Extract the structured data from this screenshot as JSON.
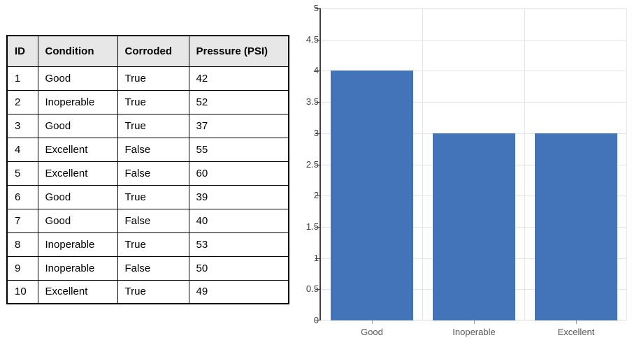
{
  "table": {
    "headers": [
      "ID",
      "Condition",
      "Corroded",
      "Pressure (PSI)"
    ],
    "rows": [
      [
        "1",
        "Good",
        "True",
        "42"
      ],
      [
        "2",
        "Inoperable",
        "True",
        "52"
      ],
      [
        "3",
        "Good",
        "True",
        "37"
      ],
      [
        "4",
        "Excellent",
        "False",
        "55"
      ],
      [
        "5",
        "Excellent",
        "False",
        "60"
      ],
      [
        "6",
        "Good",
        "True",
        "39"
      ],
      [
        "7",
        "Good",
        "False",
        "40"
      ],
      [
        "8",
        "Inoperable",
        "True",
        "53"
      ],
      [
        "9",
        "Inoperable",
        "False",
        "50"
      ],
      [
        "10",
        "Excellent",
        "True",
        "49"
      ]
    ],
    "header_bg": "#E7E7E7",
    "border_color": "#000000"
  },
  "chart_data": {
    "type": "bar",
    "categories": [
      "Good",
      "Inoperable",
      "Excellent"
    ],
    "values": [
      4,
      3,
      3
    ],
    "title": "",
    "xlabel": "",
    "ylabel": "",
    "ylim": [
      0,
      5
    ],
    "y_tick_step": 0.5,
    "y_tick_labels": [
      "5",
      "4.5",
      "4",
      "3.5",
      "3",
      "2.5",
      "2",
      "1.5",
      "1",
      "0.5",
      "0"
    ],
    "bar_color": "#4373B9",
    "gridline_color": "#E4E4E4",
    "axis_color": "#404040",
    "x_label_color": "#595959",
    "grid": true,
    "legend_position": "none",
    "bar_width_fraction": 0.81
  }
}
